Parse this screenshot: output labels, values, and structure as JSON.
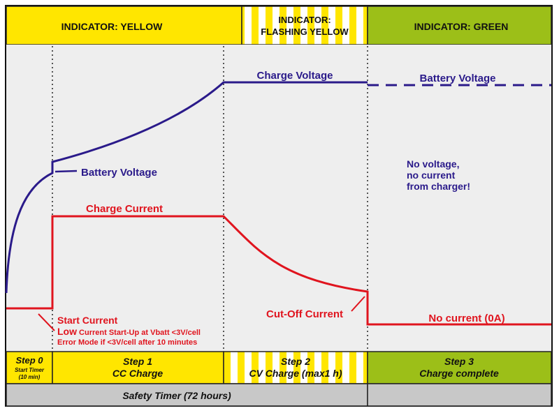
{
  "header": {
    "indicator_yellow": "INDICATOR: YELLOW",
    "indicator_flashing_line1": "INDICATOR:",
    "indicator_flashing_line2": "FLASHING YELLOW",
    "indicator_green": "INDICATOR: GREEN"
  },
  "curves": {
    "charge_voltage": "Charge Voltage",
    "battery_voltage_top": "Battery Voltage",
    "battery_voltage_left": "Battery Voltage",
    "charge_current": "Charge Current",
    "start_current": "Start Current",
    "low_prefix": "Low",
    "low_rest": " Current Start-Up at Vbatt <3V/cell",
    "error_mode": "Error Mode if <3V/cell after 10 minutes",
    "cutoff_current": "Cut-Off Current",
    "no_current": "No current (0A)",
    "no_voltage_line1": "No voltage,",
    "no_voltage_line2": "no current",
    "no_voltage_line3": "from charger!"
  },
  "steps": {
    "step0_title": "Step 0",
    "step0_line1": "Start Timer",
    "step0_line2": "(10 min)",
    "step1_title": "Step 1",
    "step1_desc": "CC Charge",
    "step2_title": "Step 2",
    "step2_desc": "CV Charge (max1 h)",
    "step3_title": "Step 3",
    "step3_desc": "Charge complete"
  },
  "footer": {
    "safety_timer": "Safety Timer (72 hours)"
  },
  "colors": {
    "yellow": "#ffe600",
    "green": "#9cbf18",
    "voltage": "#2a1a8a",
    "current": "#e0141e",
    "gray": "#c8c8c8"
  }
}
